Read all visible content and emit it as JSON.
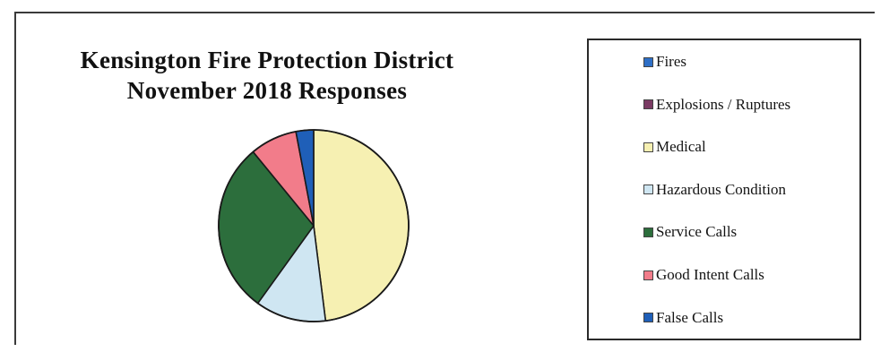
{
  "chart_data": {
    "type": "pie",
    "title_lines": [
      "Kensington Fire Protection District",
      "November 2018 Responses"
    ],
    "slices": [
      {
        "name": "Fires",
        "value": 0,
        "color": "#2e6fc6"
      },
      {
        "name": "Explosions / Ruptures",
        "value": 0,
        "color": "#7a3a63"
      },
      {
        "name": "Medical",
        "value": 48,
        "color": "#f6f0b2"
      },
      {
        "name": "Hazardous Condition",
        "value": 12,
        "color": "#cfe6f2"
      },
      {
        "name": "Service Calls",
        "value": 29,
        "color": "#2c6e3c"
      },
      {
        "name": "Good Intent Calls",
        "value": 8,
        "color": "#f27c8a"
      },
      {
        "name": "False Calls",
        "value": 3,
        "color": "#1f5fb8"
      }
    ],
    "start_angle_deg": 0,
    "direction": "clockwise",
    "legend_position": "right"
  }
}
